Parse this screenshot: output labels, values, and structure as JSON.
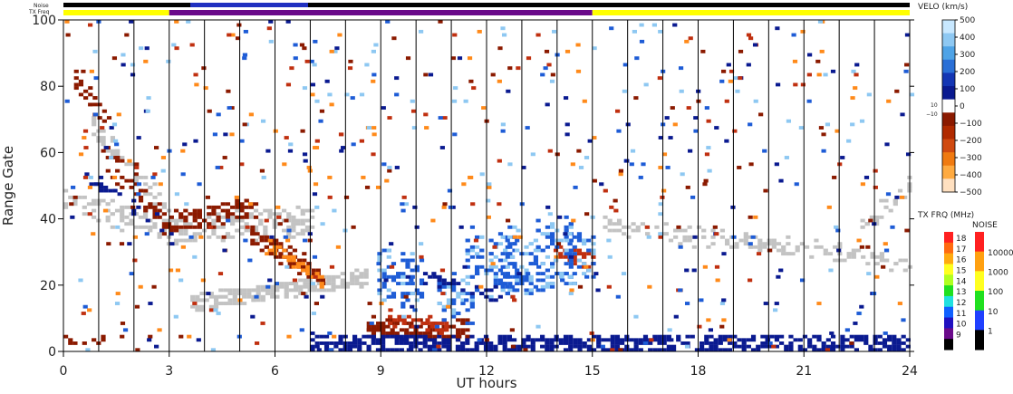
{
  "chart_data": {
    "type": "heatmap",
    "xlabel": "UT hours",
    "ylabel": "Range Gate",
    "xlim": [
      0,
      24
    ],
    "ylim": [
      0,
      100
    ],
    "x_ticks": [
      "0",
      "3",
      "6",
      "9",
      "12",
      "15",
      "18",
      "21",
      "24"
    ],
    "y_ticks": [
      "0",
      "20",
      "40",
      "60",
      "80",
      "100"
    ],
    "strip_labels": {
      "noise": "Noise",
      "txfreq": "TX Freq"
    },
    "tx_freq_bands": [
      {
        "x0": 0,
        "x1": 3,
        "color": "#ffff00"
      },
      {
        "x0": 3,
        "x1": 15,
        "color": "#6a0a8a"
      },
      {
        "x0": 15,
        "x1": 24,
        "color": "#ffff00"
      }
    ],
    "velocity_scale": {
      "title": "VELO (km/s)",
      "ticks": [
        "500",
        "400",
        "300",
        "200",
        "100",
        "0",
        "−100",
        "−200",
        "−300",
        "−400",
        "−500"
      ],
      "inner_labels": [
        "10",
        "−10"
      ]
    },
    "txfreq_scale": {
      "title": "TX FRQ (MHz)",
      "ticks": [
        "18",
        "17",
        "16",
        "15",
        "14",
        "13",
        "12",
        "11",
        "10",
        "9"
      ]
    },
    "noise_scale": {
      "title": "NOISE",
      "ticks": [
        "10000",
        "1000",
        "100",
        "10",
        "1"
      ]
    },
    "colors": {
      "ground_scatter": "#c3c3c3",
      "dark_red": "#8b1a00",
      "red": "#c03010",
      "orange": "#ff8a1a",
      "navy": "#0a1a90",
      "blue": "#1e5cd6",
      "light_blue": "#8ec8f2"
    }
  }
}
